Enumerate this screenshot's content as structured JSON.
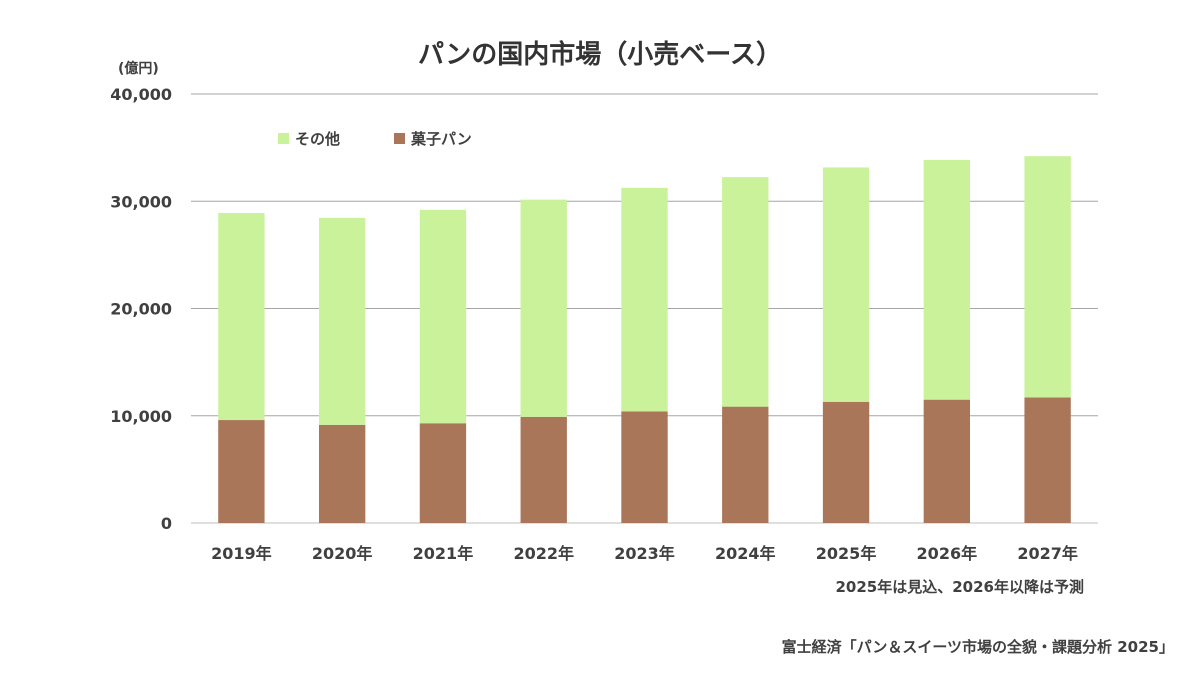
{
  "chart_data": {
    "type": "bar",
    "stacked": true,
    "title": "パンの国内市場（小売ベース）",
    "ylabel": "(億円)",
    "ylim": [
      0,
      40000
    ],
    "yticks": [
      "0",
      "10,000",
      "20,000",
      "30,000",
      "40,000"
    ],
    "categories": [
      "2019年",
      "2020年",
      "2021年",
      "2022年",
      "2023年",
      "2024年",
      "2025年",
      "2026年",
      "2027年"
    ],
    "series": [
      {
        "name": "菓子パン",
        "color": "#a9765a",
        "values": [
          9600,
          9150,
          9300,
          9900,
          10400,
          10850,
          11300,
          11500,
          11700
        ]
      },
      {
        "name": "その他",
        "color": "#c9f29a",
        "values": [
          19300,
          19300,
          19900,
          20250,
          20850,
          21400,
          21850,
          22350,
          22500
        ]
      }
    ],
    "legend_order": [
      "その他",
      "菓子パン"
    ],
    "legend_position": "top-left",
    "grid": true
  },
  "note": "2025年は見込、2026年以降は予測",
  "source": "富士経済「パン＆スイーツ市場の全貌・課題分析 2025」"
}
